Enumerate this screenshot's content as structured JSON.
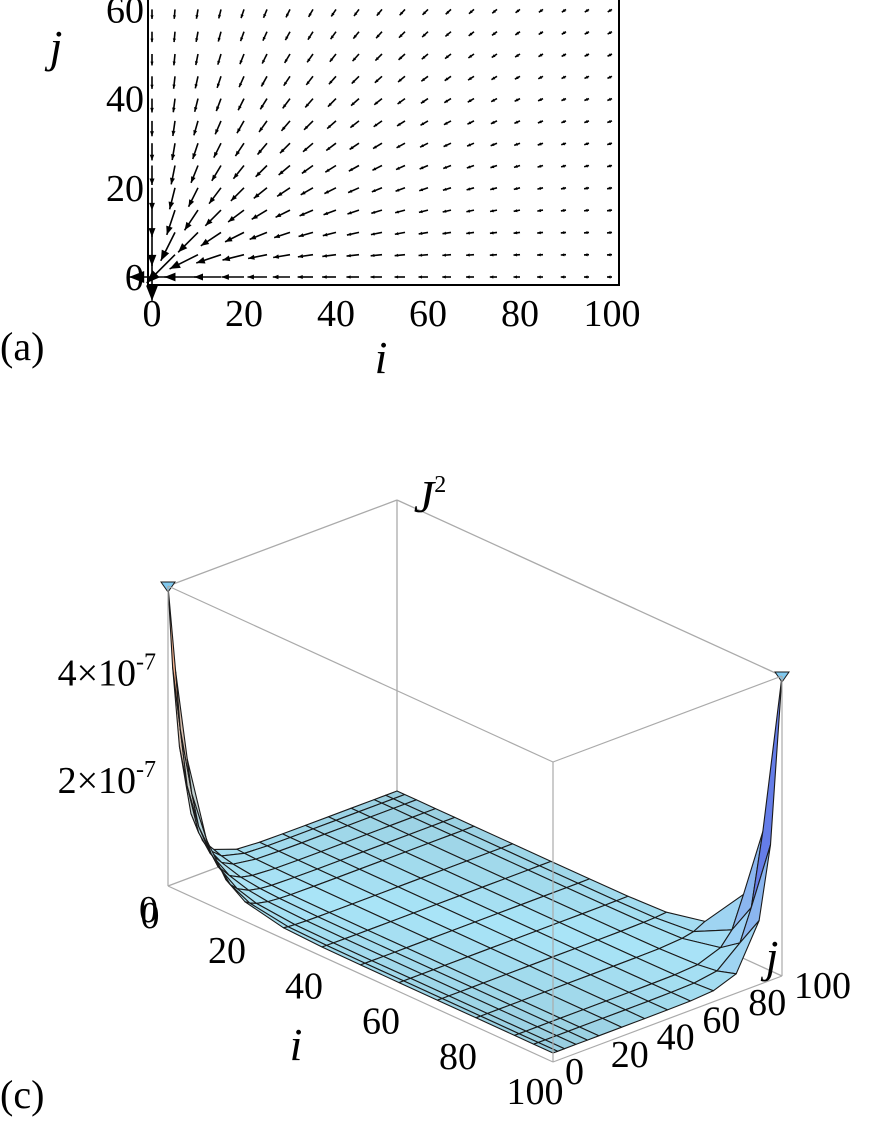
{
  "chart_data": [
    {
      "type": "vector_field",
      "panel_label": "(a)",
      "xlabel": "i",
      "ylabel": "j",
      "xticks": [
        "0",
        "20",
        "40",
        "60",
        "80",
        "100"
      ],
      "yticks": [
        "0",
        "20",
        "40",
        "60"
      ],
      "xlim": [
        0,
        100
      ],
      "ylim": [
        0,
        65
      ],
      "grid_step": 5,
      "vector_direction": "toward-origin",
      "magnitude_scaling": "largest near (0,0), diminishing toward i=100 and j=100 edges"
    },
    {
      "type": "surface3d",
      "panel_label": "(c)",
      "zlabel": "J",
      "zlabel_power": "2",
      "xlabel": "i",
      "ylabel": "j",
      "xticks": [
        "0",
        "20",
        "40",
        "60",
        "80",
        "100"
      ],
      "yticks": [
        "0",
        "20",
        "40",
        "60",
        "80",
        "100"
      ],
      "zticks": [
        {
          "mant": "4×10",
          "exp": "-7",
          "value": 4e-07
        },
        {
          "mant": "2×10",
          "exp": "-7",
          "value": 2e-07
        }
      ],
      "xlim": [
        0,
        100
      ],
      "ylim": [
        0,
        100
      ],
      "zlim": [
        0,
        5.6e-07
      ],
      "surface_samples_i": [
        0,
        2,
        5,
        10,
        15,
        20,
        30,
        40,
        50,
        60,
        70,
        80,
        90,
        95,
        100
      ],
      "peaks": [
        {
          "i": 0,
          "j": 0,
          "z": 5.6e-07,
          "color": "#f3b08c"
        },
        {
          "i": 100,
          "j": 100,
          "z": 5.6e-07,
          "color": "#3a3adf"
        }
      ],
      "base_color": "#a9e4f7"
    }
  ]
}
